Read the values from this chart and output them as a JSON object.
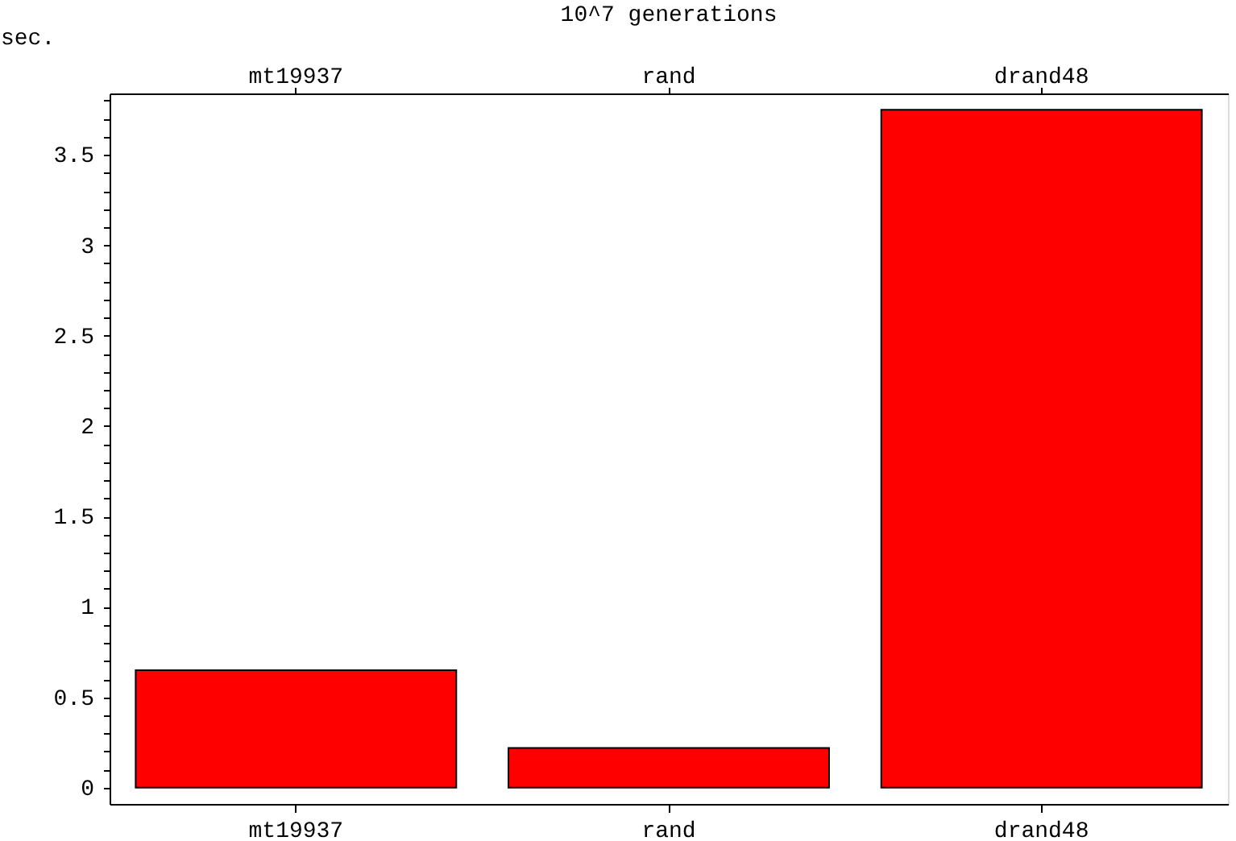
{
  "chart_data": {
    "type": "bar",
    "title": "10^7 generations",
    "ylabel": "sec.",
    "categories": [
      "mt19937",
      "rand",
      "drand48"
    ],
    "values": [
      0.65,
      0.22,
      3.75
    ],
    "color": "#ff0000",
    "ylim": [
      -0.09,
      3.84
    ],
    "yticks": [
      0,
      {
        "value": 0.1,
        "label": null
      },
      {
        "value": 0.2,
        "label": null
      },
      {
        "value": 0.3,
        "label": null
      },
      {
        "value": 0.4,
        "label": null
      },
      0.5,
      {
        "value": 0.6,
        "label": null
      },
      {
        "value": 0.7,
        "label": null
      },
      {
        "value": 0.8,
        "label": null
      },
      {
        "value": 0.9,
        "label": null
      },
      1,
      {
        "value": 1.1,
        "label": null
      },
      {
        "value": 1.2,
        "label": null
      },
      {
        "value": 1.3,
        "label": null
      },
      {
        "value": 1.4,
        "label": null
      },
      1.5,
      {
        "value": 1.6,
        "label": null
      },
      {
        "value": 1.7,
        "label": null
      },
      {
        "value": 1.8,
        "label": null
      },
      {
        "value": 1.9,
        "label": null
      },
      2,
      {
        "value": 2.1,
        "label": null
      },
      {
        "value": 2.2,
        "label": null
      },
      {
        "value": 2.3,
        "label": null
      },
      {
        "value": 2.4,
        "label": null
      },
      2.5,
      {
        "value": 2.6,
        "label": null
      },
      {
        "value": 2.7,
        "label": null
      },
      {
        "value": 2.8,
        "label": null
      },
      {
        "value": 2.9,
        "label": null
      },
      3,
      {
        "value": 3.1,
        "label": null
      },
      {
        "value": 3.2,
        "label": null
      },
      {
        "value": 3.3,
        "label": null
      },
      {
        "value": 3.4,
        "label": null
      },
      3.5,
      {
        "value": 3.6,
        "label": null
      },
      {
        "value": 3.7,
        "label": null
      },
      {
        "value": 3.8,
        "label": null
      }
    ],
    "grid": false
  }
}
